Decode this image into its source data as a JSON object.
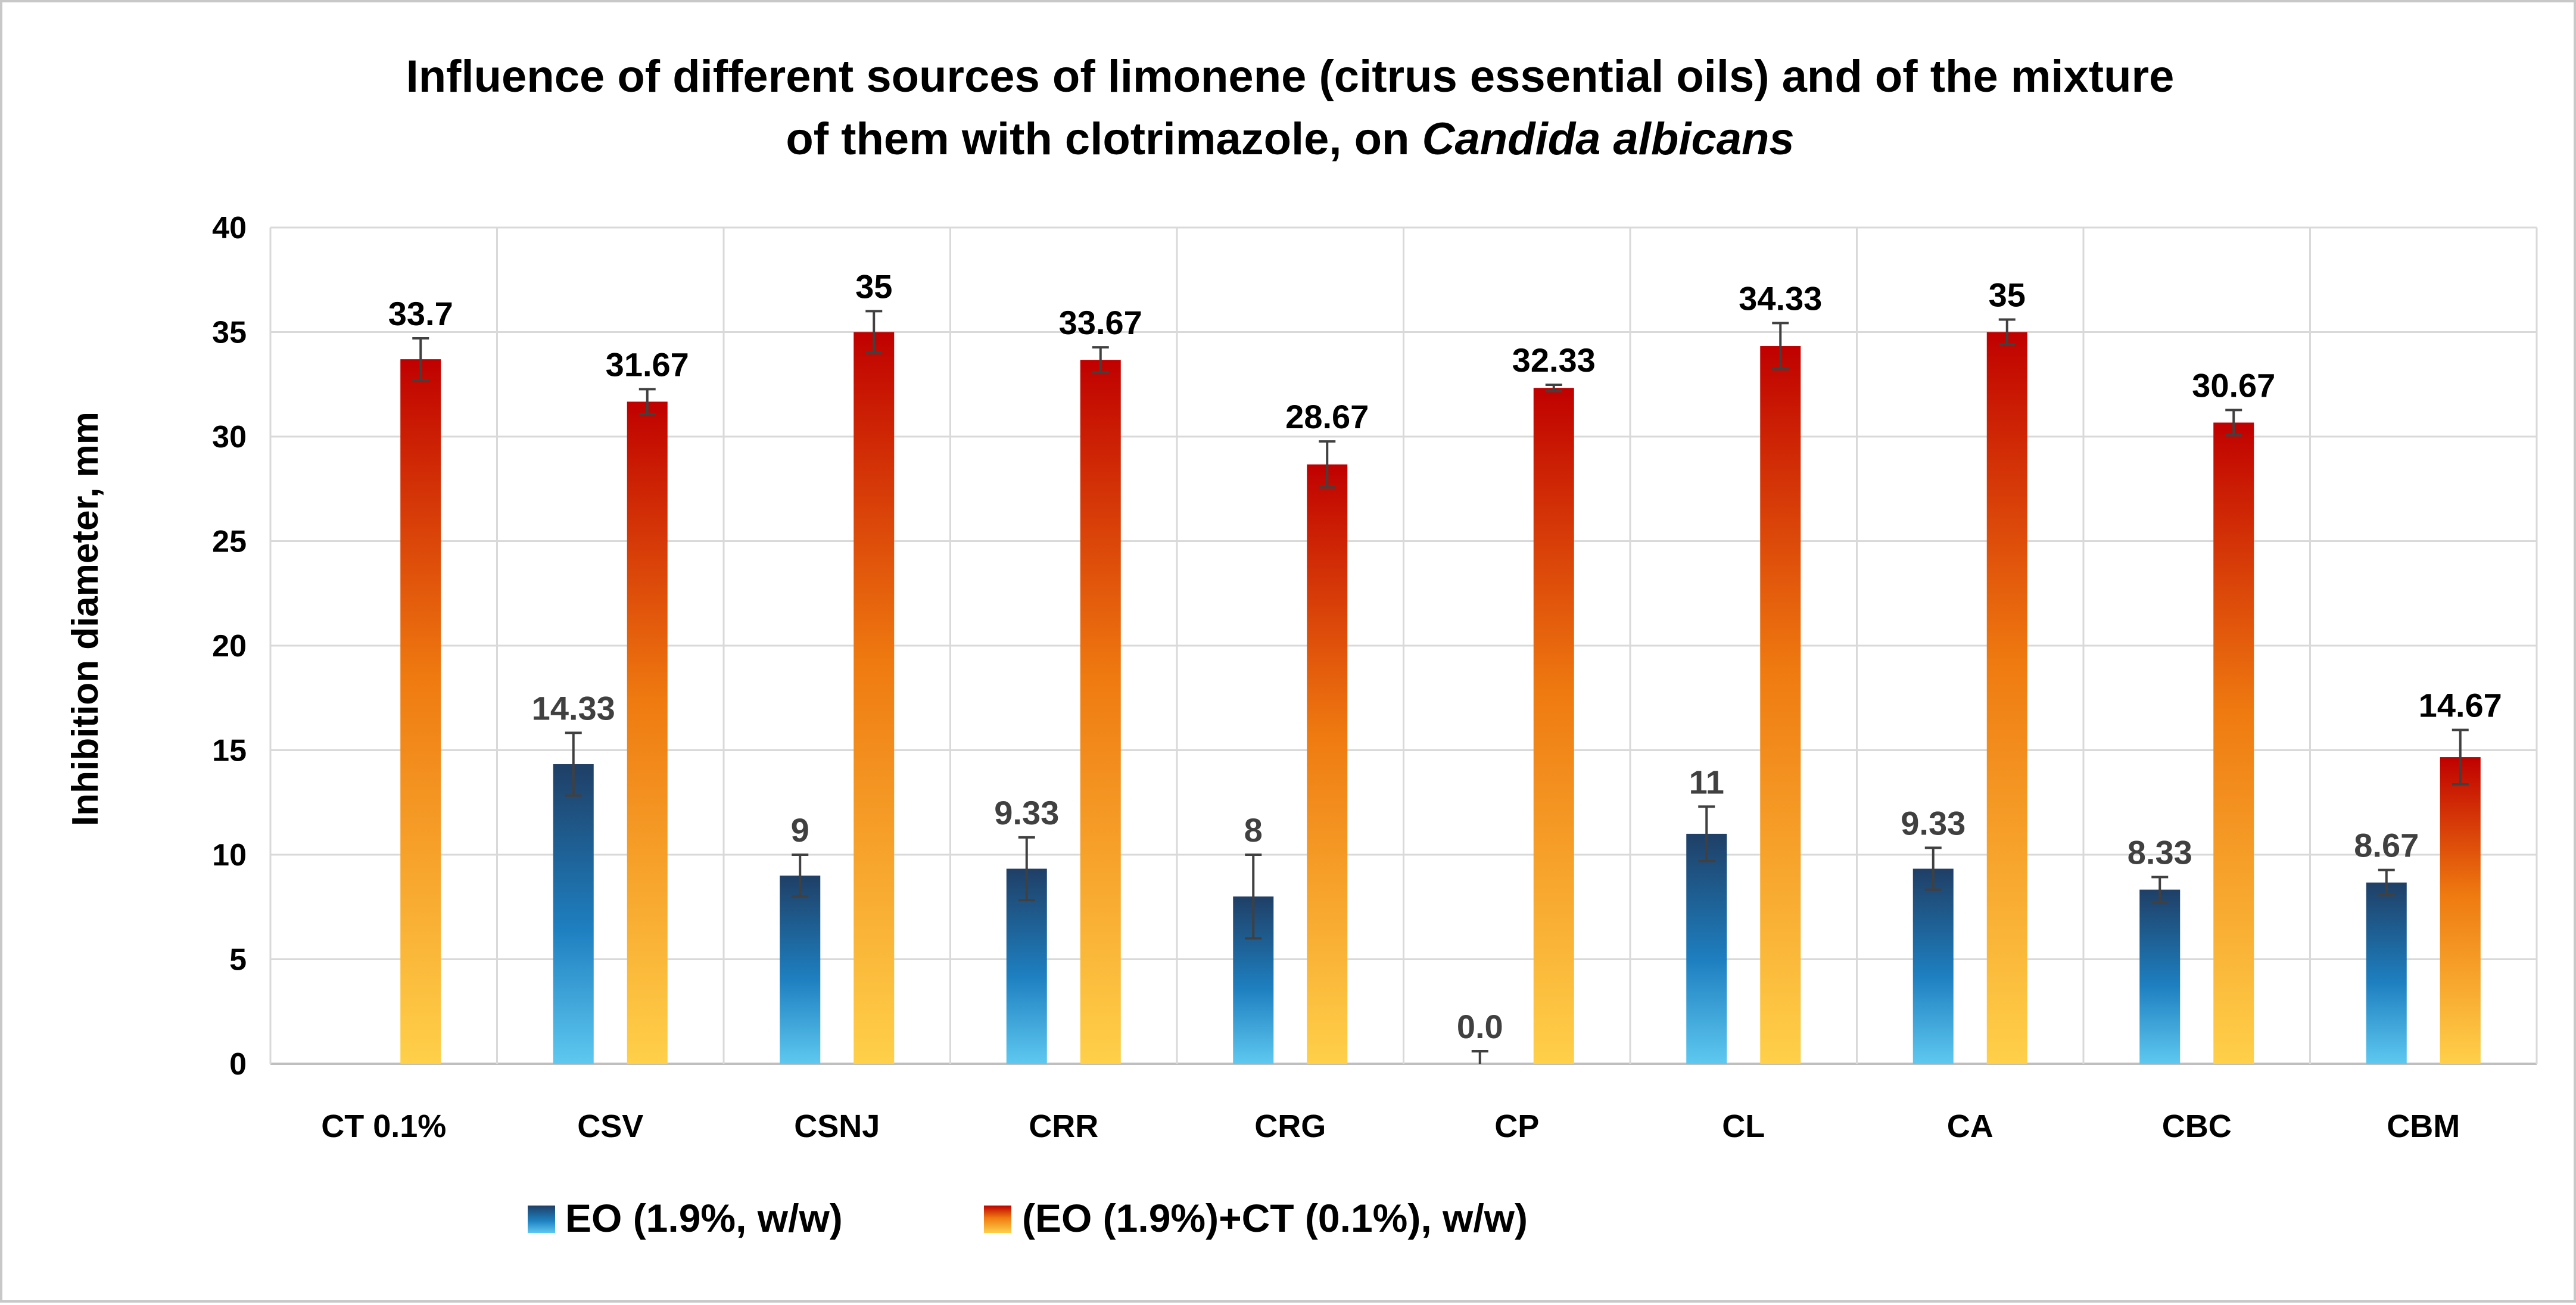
{
  "chart_data": {
    "type": "bar",
    "title": "Influence of different sources of limonene (citrus essential oils) and of the mixture of them with clotrimazole, on Candida albicans",
    "title_lines": [
      {
        "prefix": "Influence of different sources of limonene (citrus essential oils) and of the mixture",
        "italic": ""
      },
      {
        "prefix": "of them with clotrimazole, on ",
        "italic": "Candida albicans"
      }
    ],
    "xlabel": "",
    "ylabel": "Inhibition diameter,   mm",
    "ylim": [
      0,
      40
    ],
    "yticks": [
      0,
      5,
      10,
      15,
      20,
      25,
      30,
      35,
      40
    ],
    "grid": true,
    "legend_position": "bottom",
    "categories": [
      "CT 0.1%",
      "CSV",
      "CSNJ",
      "CRR",
      "CRG",
      "CP",
      "CL",
      "CA",
      "CBC",
      "CBM"
    ],
    "series": [
      {
        "name": "EO (1.9%, w/w)",
        "values": [
          null,
          14.33,
          9,
          9.33,
          8,
          0,
          11,
          9.33,
          8.33,
          8.67
        ],
        "labels": [
          "",
          "14.33",
          "9",
          "9.33",
          "8",
          "0.0",
          "11",
          "9.33",
          "8.33",
          "8.67"
        ],
        "errors": [
          null,
          1.5,
          1.0,
          1.5,
          2.0,
          0.6,
          1.3,
          1.0,
          0.6,
          0.6
        ],
        "color_top": "#1f3f66",
        "color_bottom": "#5ec8f0"
      },
      {
        "name": "(EO (1.9%)+CT (0.1%), w/w)",
        "values": [
          33.7,
          31.67,
          35,
          33.67,
          28.67,
          32.33,
          34.33,
          35,
          30.67,
          14.67
        ],
        "labels": [
          "33.7",
          "31.67",
          "35",
          "33.67",
          "28.67",
          "32.33",
          "34.33",
          "35",
          "30.67",
          "14.67"
        ],
        "errors": [
          1.0,
          0.6,
          1.0,
          0.6,
          1.1,
          0.15,
          1.1,
          0.6,
          0.6,
          1.3
        ],
        "color_top": "#c00000",
        "color_bottom": "#ffd04a"
      }
    ]
  }
}
